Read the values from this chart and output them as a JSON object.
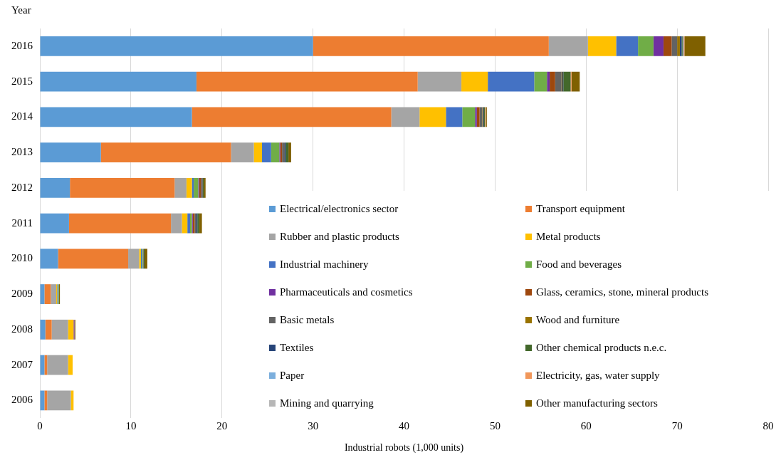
{
  "chart_data": {
    "type": "bar",
    "orientation": "horizontal",
    "stacked": true,
    "xlabel": "Industrial robots (1,000 units)",
    "ylabel": "Year",
    "categories": [
      "2016",
      "2015",
      "2014",
      "2013",
      "2012",
      "2011",
      "2010",
      "2009",
      "2008",
      "2007",
      "2006"
    ],
    "xlim": [
      0,
      80
    ],
    "xticks": [
      0,
      10,
      20,
      30,
      40,
      50,
      60,
      70,
      80
    ],
    "grid": "x",
    "legend": "bottom right",
    "series": [
      {
        "name": "Electrical/electronics sector",
        "color": "#5b9bd5",
        "values": [
          30,
          17.2,
          16.7,
          6.7,
          3.3,
          3.2,
          2.0,
          0.5,
          0.6,
          0.5,
          0.5
        ]
      },
      {
        "name": "Transport equipment",
        "color": "#ed7d31",
        "values": [
          25.9,
          24.3,
          21.9,
          14.3,
          11.5,
          11.2,
          7.7,
          0.7,
          0.7,
          0.3,
          0.3
        ]
      },
      {
        "name": "Rubber and plastic products",
        "color": "#a5a5a5",
        "values": [
          4.3,
          4.8,
          3.1,
          2.5,
          1.3,
          1.2,
          1.2,
          0.6,
          1.8,
          2.3,
          2.6
        ]
      },
      {
        "name": "Metal products",
        "color": "#ffc000",
        "values": [
          3.1,
          2.9,
          2.9,
          0.9,
          0.6,
          0.6,
          0.2,
          0.1,
          0.6,
          0.5,
          0.3
        ]
      },
      {
        "name": "Industrial machinery",
        "color": "#4472c4",
        "values": [
          2.4,
          5.1,
          1.8,
          1.0,
          0.2,
          0.3,
          0.1,
          0.1,
          0,
          0,
          0
        ]
      },
      {
        "name": "Food and beverages",
        "color": "#70ad47",
        "values": [
          1.7,
          1.4,
          1.4,
          0.9,
          0.5,
          0.2,
          0.1,
          0.1,
          0,
          0,
          0
        ]
      },
      {
        "name": "Pharmaceuticals and cosmetics",
        "color": "#7030a0",
        "values": [
          1.1,
          0.3,
          0.2,
          0.1,
          0.1,
          0.1,
          0,
          0,
          0.1,
          0,
          0
        ]
      },
      {
        "name": "Glass, ceramics, stone, mineral products",
        "color": "#9e480e",
        "values": [
          0.9,
          0.6,
          0.3,
          0.2,
          0.2,
          0.2,
          0,
          0,
          0,
          0,
          0
        ]
      },
      {
        "name": "Basic metals",
        "color": "#636363",
        "values": [
          0.6,
          0.7,
          0.3,
          0.3,
          0.2,
          0.2,
          0.1,
          0,
          0,
          0,
          0
        ]
      },
      {
        "name": "Wood and furniture",
        "color": "#997300",
        "values": [
          0.3,
          0.1,
          0.1,
          0,
          0,
          0,
          0,
          0,
          0,
          0,
          0
        ]
      },
      {
        "name": "Textiles",
        "color": "#264478",
        "values": [
          0.2,
          0.1,
          0.1,
          0.1,
          0,
          0.1,
          0,
          0,
          0,
          0,
          0
        ]
      },
      {
        "name": "Other chemical products n.e.c.",
        "color": "#43682b",
        "values": [
          0.1,
          0.8,
          0.1,
          0.3,
          0.1,
          0.2,
          0.1,
          0,
          0,
          0,
          0
        ]
      },
      {
        "name": "Paper",
        "color": "#7cafdd",
        "values": [
          0.1,
          0,
          0,
          0,
          0,
          0,
          0,
          0,
          0,
          0,
          0
        ]
      },
      {
        "name": "Electricity, gas, water supply",
        "color": "#f1975a",
        "values": [
          0.1,
          0.1,
          0.1,
          0,
          0,
          0,
          0,
          0,
          0,
          0,
          0
        ]
      },
      {
        "name": "Mining and quarrying",
        "color": "#b7b7b7",
        "values": [
          null,
          0,
          0,
          0,
          0,
          0,
          0,
          0,
          0,
          0,
          0
        ]
      },
      {
        "name": "Other manufacturing sectors",
        "color": "#7f6000",
        "values": [
          2.3,
          0.9,
          0.1,
          0.3,
          0.2,
          0.3,
          0.3,
          0.1,
          0.1,
          0,
          0
        ]
      }
    ]
  }
}
